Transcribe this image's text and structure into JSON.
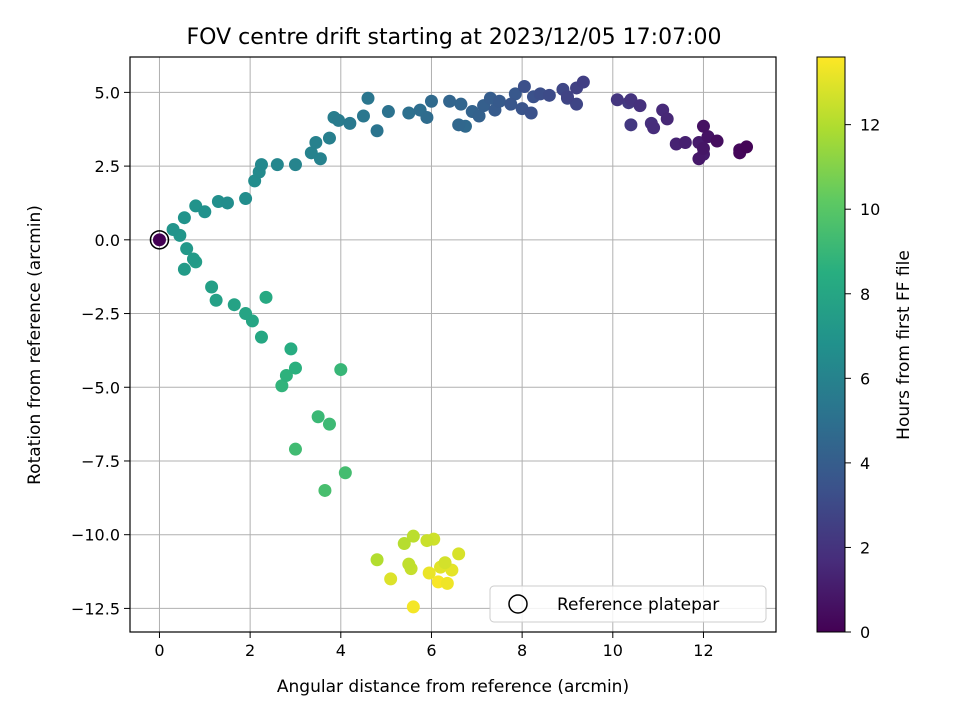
{
  "chart_data": {
    "type": "scatter",
    "title": "FOV centre drift starting at 2023/12/05 17:07:00",
    "xlabel": "Angular distance from reference (arcmin)",
    "ylabel": "Rotation from reference (arcmin)",
    "xlim": [
      -0.65,
      13.6
    ],
    "ylim": [
      -13.3,
      6.2
    ],
    "xticks": [
      0,
      2,
      4,
      6,
      8,
      10,
      12
    ],
    "xtick_labels": [
      "0",
      "2",
      "4",
      "6",
      "8",
      "10",
      "12"
    ],
    "yticks": [
      5.0,
      2.5,
      0.0,
      -2.5,
      -5.0,
      -7.5,
      -10.0,
      -12.5
    ],
    "ytick_labels": [
      "5.0",
      "2.5",
      "0.0",
      "−2.5",
      "−5.0",
      "−7.5",
      "−10.0",
      "−12.5"
    ],
    "grid": true,
    "colormap": "viridis",
    "colorbar": {
      "label": "Hours from first FF file",
      "range": [
        0,
        13.6
      ],
      "ticks": [
        0,
        2,
        4,
        6,
        8,
        10,
        12
      ],
      "tick_labels": [
        "0",
        "2",
        "4",
        "6",
        "8",
        "10",
        "12"
      ]
    },
    "legend": {
      "placement": "lower-right",
      "entries": [
        "Reference platepar"
      ]
    },
    "reference_point": {
      "x": 0,
      "y": 0,
      "name": "Reference platepar"
    },
    "series": [
      {
        "points": [
          {
            "x": 12.95,
            "y": 3.15,
            "t": 0.1
          },
          {
            "x": 12.8,
            "y": 2.95,
            "t": 0.2
          },
          {
            "x": 12.8,
            "y": 3.05,
            "t": 0.3
          },
          {
            "x": 12.3,
            "y": 3.35,
            "t": 0.5
          },
          {
            "x": 12.0,
            "y": 3.85,
            "t": 0.6
          },
          {
            "x": 12.1,
            "y": 3.5,
            "t": 0.7
          },
          {
            "x": 12.0,
            "y": 3.1,
            "t": 0.8
          },
          {
            "x": 11.9,
            "y": 2.75,
            "t": 0.9
          },
          {
            "x": 11.9,
            "y": 3.3,
            "t": 1.0
          },
          {
            "x": 12.0,
            "y": 2.9,
            "t": 1.0
          },
          {
            "x": 11.6,
            "y": 3.3,
            "t": 1.2
          },
          {
            "x": 11.4,
            "y": 3.25,
            "t": 1.3
          },
          {
            "x": 11.2,
            "y": 4.1,
            "t": 1.5
          },
          {
            "x": 11.1,
            "y": 4.4,
            "t": 1.6
          },
          {
            "x": 10.9,
            "y": 3.8,
            "t": 1.7
          },
          {
            "x": 10.85,
            "y": 3.95,
            "t": 1.8
          },
          {
            "x": 10.6,
            "y": 4.55,
            "t": 1.9
          },
          {
            "x": 10.4,
            "y": 4.75,
            "t": 2.0
          },
          {
            "x": 10.1,
            "y": 4.75,
            "t": 2.1
          },
          {
            "x": 10.4,
            "y": 3.9,
            "t": 2.2
          },
          {
            "x": 10.35,
            "y": 4.65,
            "t": 2.3
          },
          {
            "x": 9.35,
            "y": 5.35,
            "t": 2.5
          },
          {
            "x": 9.2,
            "y": 5.15,
            "t": 2.6
          },
          {
            "x": 9.0,
            "y": 4.85,
            "t": 2.7
          },
          {
            "x": 9.2,
            "y": 4.6,
            "t": 2.8
          },
          {
            "x": 8.9,
            "y": 5.1,
            "t": 2.9
          },
          {
            "x": 9.0,
            "y": 4.8,
            "t": 3.0
          },
          {
            "x": 8.6,
            "y": 4.9,
            "t": 3.1
          },
          {
            "x": 8.4,
            "y": 4.95,
            "t": 3.2
          },
          {
            "x": 8.05,
            "y": 5.2,
            "t": 3.3
          },
          {
            "x": 8.25,
            "y": 4.85,
            "t": 3.4
          },
          {
            "x": 8.2,
            "y": 4.3,
            "t": 3.4
          },
          {
            "x": 8.0,
            "y": 4.45,
            "t": 3.5
          },
          {
            "x": 7.75,
            "y": 4.6,
            "t": 3.6
          },
          {
            "x": 7.85,
            "y": 4.95,
            "t": 3.7
          },
          {
            "x": 7.5,
            "y": 4.7,
            "t": 3.8
          },
          {
            "x": 7.4,
            "y": 4.4,
            "t": 3.9
          },
          {
            "x": 7.3,
            "y": 4.8,
            "t": 4.0
          },
          {
            "x": 7.15,
            "y": 4.55,
            "t": 4.1
          },
          {
            "x": 7.05,
            "y": 4.2,
            "t": 4.2
          },
          {
            "x": 6.9,
            "y": 4.35,
            "t": 4.3
          },
          {
            "x": 6.65,
            "y": 4.6,
            "t": 4.4
          },
          {
            "x": 6.4,
            "y": 4.7,
            "t": 4.4
          },
          {
            "x": 6.6,
            "y": 3.9,
            "t": 4.5
          },
          {
            "x": 6.75,
            "y": 3.85,
            "t": 4.6
          },
          {
            "x": 6.0,
            "y": 4.7,
            "t": 4.7
          },
          {
            "x": 5.9,
            "y": 4.15,
            "t": 4.8
          },
          {
            "x": 5.75,
            "y": 4.4,
            "t": 4.9
          },
          {
            "x": 5.5,
            "y": 4.3,
            "t": 5.0
          },
          {
            "x": 5.05,
            "y": 4.35,
            "t": 5.1
          },
          {
            "x": 4.8,
            "y": 3.7,
            "t": 5.2
          },
          {
            "x": 4.6,
            "y": 4.8,
            "t": 5.3
          },
          {
            "x": 4.5,
            "y": 4.2,
            "t": 5.4
          },
          {
            "x": 4.2,
            "y": 3.95,
            "t": 5.5
          },
          {
            "x": 3.95,
            "y": 4.05,
            "t": 5.6
          },
          {
            "x": 3.85,
            "y": 4.15,
            "t": 5.7
          },
          {
            "x": 3.75,
            "y": 3.45,
            "t": 5.8
          },
          {
            "x": 3.45,
            "y": 3.3,
            "t": 5.9
          },
          {
            "x": 3.55,
            "y": 2.75,
            "t": 6.0
          },
          {
            "x": 3.35,
            "y": 2.95,
            "t": 6.0
          },
          {
            "x": 3.0,
            "y": 2.55,
            "t": 6.1
          },
          {
            "x": 2.6,
            "y": 2.55,
            "t": 6.2
          },
          {
            "x": 2.25,
            "y": 2.55,
            "t": 6.3
          },
          {
            "x": 2.2,
            "y": 2.3,
            "t": 6.4
          },
          {
            "x": 2.1,
            "y": 2.0,
            "t": 6.5
          },
          {
            "x": 1.9,
            "y": 1.4,
            "t": 6.6
          },
          {
            "x": 1.5,
            "y": 1.25,
            "t": 6.6
          },
          {
            "x": 1.3,
            "y": 1.3,
            "t": 6.7
          },
          {
            "x": 1.0,
            "y": 0.95,
            "t": 6.8
          },
          {
            "x": 0.8,
            "y": 1.15,
            "t": 6.9
          },
          {
            "x": 0.55,
            "y": 0.75,
            "t": 6.9
          },
          {
            "x": 0.3,
            "y": 0.35,
            "t": 7.0
          },
          {
            "x": 0.45,
            "y": 0.15,
            "t": 7.1
          },
          {
            "x": 0.6,
            "y": -0.3,
            "t": 7.2
          },
          {
            "x": 0.75,
            "y": -0.65,
            "t": 7.3
          },
          {
            "x": 0.55,
            "y": -1.0,
            "t": 7.4
          },
          {
            "x": 0.8,
            "y": -0.75,
            "t": 7.5
          },
          {
            "x": 1.15,
            "y": -1.6,
            "t": 7.6
          },
          {
            "x": 1.25,
            "y": -2.05,
            "t": 7.7
          },
          {
            "x": 1.65,
            "y": -2.2,
            "t": 7.8
          },
          {
            "x": 1.9,
            "y": -2.5,
            "t": 7.9
          },
          {
            "x": 2.05,
            "y": -2.75,
            "t": 8.0
          },
          {
            "x": 2.25,
            "y": -3.3,
            "t": 8.1
          },
          {
            "x": 2.35,
            "y": -1.95,
            "t": 8.2
          },
          {
            "x": 2.9,
            "y": -3.7,
            "t": 8.4
          },
          {
            "x": 3.0,
            "y": -4.35,
            "t": 8.6
          },
          {
            "x": 2.8,
            "y": -4.6,
            "t": 8.7
          },
          {
            "x": 2.7,
            "y": -4.95,
            "t": 8.8
          },
          {
            "x": 4.0,
            "y": -4.4,
            "t": 9.0
          },
          {
            "x": 3.5,
            "y": -6.0,
            "t": 9.1
          },
          {
            "x": 3.75,
            "y": -6.25,
            "t": 9.2
          },
          {
            "x": 3.0,
            "y": -7.1,
            "t": 9.3
          },
          {
            "x": 4.1,
            "y": -7.9,
            "t": 9.4
          },
          {
            "x": 3.65,
            "y": -8.5,
            "t": 9.5
          },
          {
            "x": 4.8,
            "y": -10.85,
            "t": 12.0
          },
          {
            "x": 5.4,
            "y": -10.3,
            "t": 12.1
          },
          {
            "x": 5.6,
            "y": -10.05,
            "t": 12.2
          },
          {
            "x": 5.5,
            "y": -11.0,
            "t": 12.3
          },
          {
            "x": 5.55,
            "y": -11.15,
            "t": 12.4
          },
          {
            "x": 5.9,
            "y": -10.2,
            "t": 12.5
          },
          {
            "x": 6.05,
            "y": -10.15,
            "t": 12.6
          },
          {
            "x": 6.3,
            "y": -10.95,
            "t": 12.7
          },
          {
            "x": 6.6,
            "y": -10.65,
            "t": 12.8
          },
          {
            "x": 5.1,
            "y": -11.5,
            "t": 12.9
          },
          {
            "x": 6.2,
            "y": -11.1,
            "t": 13.0
          },
          {
            "x": 6.45,
            "y": -11.2,
            "t": 13.1
          },
          {
            "x": 5.95,
            "y": -11.3,
            "t": 13.2
          },
          {
            "x": 6.35,
            "y": -11.65,
            "t": 13.3
          },
          {
            "x": 5.6,
            "y": -12.45,
            "t": 13.4
          },
          {
            "x": 6.15,
            "y": -11.6,
            "t": 13.5
          }
        ]
      }
    ]
  }
}
